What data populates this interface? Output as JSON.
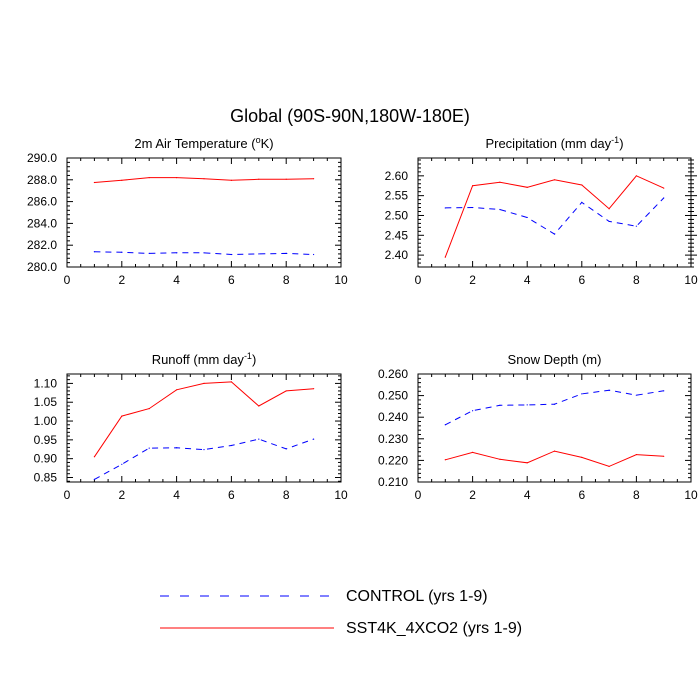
{
  "figure": {
    "title": "Global (90S-90N,180W-180E)"
  },
  "legend": {
    "placement": "bottom-center",
    "entries": [
      {
        "label": "CONTROL (yrs 1-9)",
        "color": "#0000ff",
        "style": "dashed"
      },
      {
        "label": "SST4K_4XCO2 (yrs 1-9)",
        "color": "#ff0000",
        "style": "solid"
      }
    ]
  },
  "chart_data": [
    {
      "type": "line",
      "title": "2m Air Temperature (",
      "title_sup": "o",
      "title_tail": "K)",
      "xlim": [
        0,
        10
      ],
      "ylim": [
        280,
        290
      ],
      "xticks": [
        "0",
        "2",
        "4",
        "6",
        "8",
        "10"
      ],
      "yticks": [
        "280.0",
        "282.0",
        "284.0",
        "286.0",
        "288.0",
        "290.0"
      ],
      "yticks_right": false,
      "x": [
        1,
        2,
        3,
        4,
        5,
        6,
        7,
        8,
        9
      ],
      "series": [
        {
          "name": "CONTROL (yrs 1-9)",
          "color": "#0000ff",
          "style": "dashed",
          "values": [
            281.4,
            281.35,
            281.25,
            281.3,
            281.3,
            281.15,
            281.2,
            281.25,
            281.15
          ]
        },
        {
          "name": "SST4K_4XCO2 (yrs 1-9)",
          "color": "#ff0000",
          "style": "solid",
          "values": [
            287.75,
            287.95,
            288.2,
            288.2,
            288.1,
            287.95,
            288.05,
            288.05,
            288.1
          ]
        }
      ]
    },
    {
      "type": "line",
      "title": "Precipitation (mm day",
      "title_sup": "-1",
      "title_tail": ")",
      "xlim": [
        0,
        10
      ],
      "ylim": [
        2.37,
        2.645
      ],
      "xticks": [
        "0",
        "2",
        "4",
        "6",
        "8",
        "10"
      ],
      "yticks": [
        "2.40",
        "2.45",
        "2.50",
        "2.55",
        "2.60"
      ],
      "yticks_right": true,
      "x": [
        1,
        2,
        3,
        4,
        5,
        6,
        7,
        8,
        9
      ],
      "series": [
        {
          "name": "CONTROL (yrs 1-9)",
          "color": "#0000ff",
          "style": "dashed",
          "values": [
            2.519,
            2.52,
            2.515,
            2.495,
            2.453,
            2.533,
            2.485,
            2.473,
            2.544
          ]
        },
        {
          "name": "SST4K_4XCO2 (yrs 1-9)",
          "color": "#ff0000",
          "style": "solid",
          "values": [
            2.395,
            2.575,
            2.584,
            2.571,
            2.59,
            2.577,
            2.517,
            2.6,
            2.569
          ]
        }
      ]
    },
    {
      "type": "line",
      "title": "Runoff (mm day",
      "title_sup": "-1",
      "title_tail": ")",
      "xlim": [
        0,
        10
      ],
      "ylim": [
        0.838,
        1.125
      ],
      "xticks": [
        "0",
        "2",
        "4",
        "6",
        "8",
        "10"
      ],
      "yticks": [
        "0.85",
        "0.90",
        "0.95",
        "1.00",
        "1.05",
        "1.10"
      ],
      "yticks_right": false,
      "x": [
        1,
        2,
        3,
        4,
        5,
        6,
        7,
        8,
        9
      ],
      "series": [
        {
          "name": "CONTROL (yrs 1-9)",
          "color": "#0000ff",
          "style": "dashed",
          "values": [
            0.845,
            0.885,
            0.928,
            0.929,
            0.924,
            0.935,
            0.952,
            0.926,
            0.952
          ]
        },
        {
          "name": "SST4K_4XCO2 (yrs 1-9)",
          "color": "#ff0000",
          "style": "solid",
          "values": [
            0.905,
            1.013,
            1.033,
            1.083,
            1.1,
            1.104,
            1.04,
            1.08,
            1.086
          ]
        }
      ]
    },
    {
      "type": "line",
      "title": "Snow Depth (m)",
      "title_sup": "",
      "title_tail": "",
      "xlim": [
        0,
        10
      ],
      "ylim": [
        0.21,
        0.26
      ],
      "xticks": [
        "0",
        "2",
        "4",
        "6",
        "8",
        "10"
      ],
      "yticks": [
        "0.210",
        "0.220",
        "0.230",
        "0.240",
        "0.250",
        "0.260"
      ],
      "yticks_right": false,
      "x": [
        1,
        2,
        3,
        4,
        5,
        6,
        7,
        8,
        9
      ],
      "series": [
        {
          "name": "CONTROL (yrs 1-9)",
          "color": "#0000ff",
          "style": "dashed",
          "values": [
            0.2365,
            0.243,
            0.2455,
            0.2457,
            0.246,
            0.2508,
            0.2525,
            0.2502,
            0.2522
          ]
        },
        {
          "name": "SST4K_4XCO2 (yrs 1-9)",
          "color": "#ff0000",
          "style": "solid",
          "values": [
            0.2203,
            0.2237,
            0.2205,
            0.2189,
            0.2243,
            0.2214,
            0.2172,
            0.2227,
            0.2219
          ]
        }
      ]
    }
  ]
}
